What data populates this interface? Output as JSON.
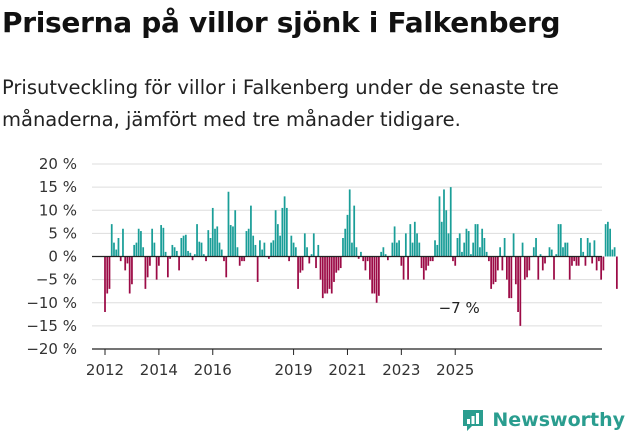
{
  "header": {
    "title": "Priserna på villor sjönk i Falkenberg",
    "subtitle": "Prisutveckling för villor i Falkenberg under de senaste tre månaderna, jämfört med tre månader tidigare."
  },
  "brand": {
    "name": "Newsworthy"
  },
  "colors": {
    "positive": "#1a9e98",
    "negative": "#9c0b46",
    "grid": "#dddddd",
    "axis": "#222222",
    "brand": "#2a9d8f"
  },
  "chart_data": {
    "type": "bar",
    "title": "Priserna på villor sjönk i Falkenberg",
    "ylim": [
      -20,
      20
    ],
    "yticks": [
      20,
      15,
      10,
      5,
      0,
      -5,
      -10,
      -15,
      -20
    ],
    "ytick_labels": [
      "20 %",
      "15 %",
      "10 %",
      "5 %",
      "0 %",
      "−5 %",
      "−10 %",
      "−15 %",
      "−20 %"
    ],
    "x_start": "2012-01",
    "xticks": [
      "2012",
      "2014",
      "2016",
      "2019",
      "2021",
      "2023",
      "2025"
    ],
    "xtick_positions": [
      "2012-01",
      "2014-01",
      "2016-01",
      "2019-01",
      "2021-01",
      "2023-01",
      "2025-01"
    ],
    "grid": "horizontal",
    "annotation": {
      "text": "−7 %",
      "x": "2025-03",
      "value": -7
    },
    "values": [
      -12,
      -8,
      -7,
      7,
      3,
      1.5,
      4,
      -1,
      6,
      -3,
      -1.5,
      -8,
      -6,
      2.5,
      3,
      6,
      5.5,
      2,
      -7,
      -4.5,
      -2,
      6,
      3,
      -5,
      -2,
      6.8,
      6.2,
      1,
      -4.5,
      -0.5,
      2.5,
      2,
      1.2,
      -3,
      4,
      4.5,
      4.7,
      1.2,
      0.8,
      -0.8,
      0.5,
      7,
      3.2,
      3,
      0.5,
      -1,
      5.7,
      4,
      10.5,
      6,
      6.5,
      3,
      1.5,
      -1,
      -4.5,
      14,
      6.8,
      6.5,
      10,
      2,
      -2,
      -1,
      -1,
      5.5,
      6,
      11,
      4.5,
      2.5,
      -5.5,
      3.5,
      1.5,
      3,
      0,
      -0.5,
      3,
      3.5,
      10,
      7,
      4.5,
      10.5,
      13,
      10.5,
      -1,
      4.5,
      3,
      2,
      -7,
      -3.5,
      -3,
      5,
      2,
      -1.5,
      0.5,
      5,
      -2.5,
      2.5,
      -5,
      -9,
      -8,
      -8,
      -7,
      -8,
      -5.5,
      -3.5,
      -3,
      -2.5,
      4,
      6,
      9,
      14.5,
      3,
      11,
      2,
      -0.5,
      1,
      -1,
      -3,
      -1,
      -5,
      -8,
      -8,
      -10,
      -8.5,
      1,
      2,
      0.5,
      -0.8,
      0,
      3,
      6.5,
      3,
      3.5,
      -2,
      -5,
      5,
      -5,
      7,
      3,
      7.5,
      5,
      3,
      -2.5,
      -5,
      -3,
      -2,
      -1,
      -1,
      3.5,
      2.5,
      13,
      7.5,
      14.5,
      10,
      5,
      15,
      -1,
      -2,
      4,
      5,
      1,
      3,
      6,
      5.5,
      0.5,
      3,
      7,
      7,
      2,
      6,
      4,
      1,
      -1,
      -7,
      -6,
      -5.5,
      -3,
      2,
      -3,
      4,
      -5,
      -9,
      -9,
      5,
      -6,
      -12,
      -15,
      3,
      -5,
      -4.5,
      -3,
      0,
      2,
      4,
      -5,
      0.5,
      -3,
      -1.5,
      0,
      2,
      1.5,
      -5,
      0.5,
      7,
      7,
      2,
      3,
      3,
      -5,
      -2,
      -1,
      -2,
      -2,
      4,
      1,
      -2,
      4,
      3,
      -1.5,
      3.5,
      -3,
      -1,
      -5,
      -3,
      7,
      7.5,
      6,
      1.5,
      2,
      -7
    ]
  }
}
